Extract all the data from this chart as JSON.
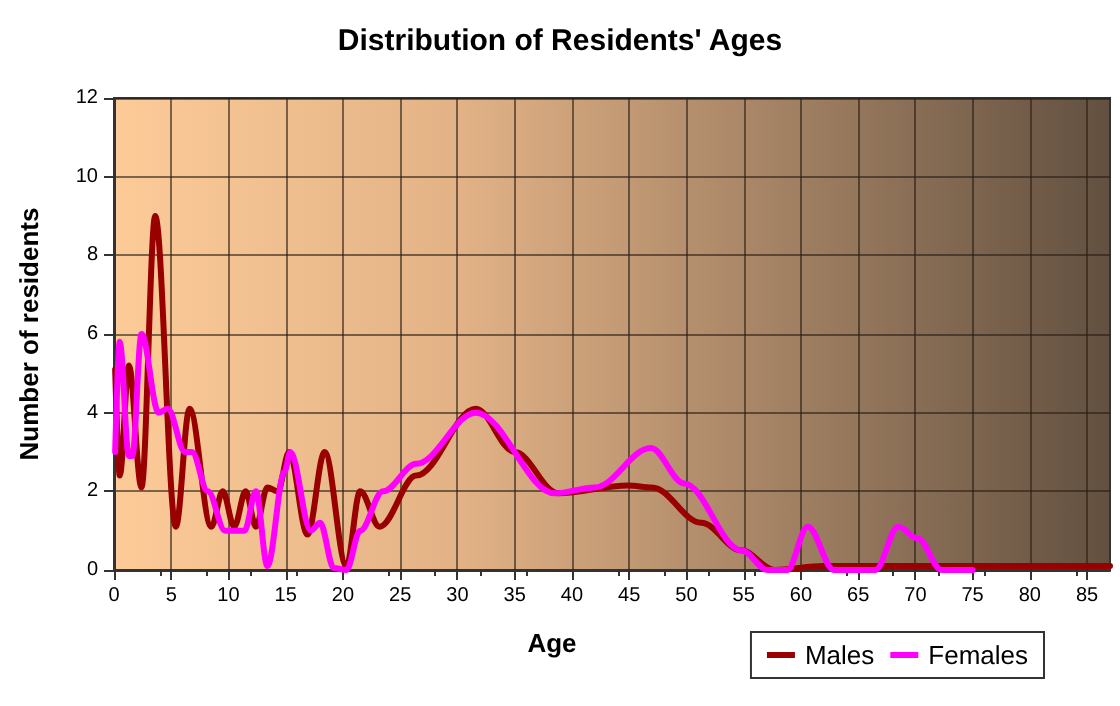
{
  "chart_data": {
    "type": "line",
    "title": "Distribution of Residents' Ages",
    "xlabel": "Age",
    "ylabel": "Number of residents",
    "xlim": [
      0,
      87
    ],
    "xticks": [
      0,
      5,
      10,
      15,
      20,
      25,
      30,
      35,
      40,
      45,
      50,
      55,
      60,
      65,
      70,
      75,
      80,
      85
    ],
    "ylim": [
      0,
      12
    ],
    "yticks": [
      0,
      2,
      4,
      6,
      8,
      10,
      12
    ],
    "grid": true,
    "legend": "bottom right",
    "marker": "none",
    "line_style": "solid",
    "series": [
      {
        "name": "Males",
        "color": "#990000",
        "x": [
          0.1,
          0.5,
          1.3,
          2.4,
          3.6,
          5.4,
          6.6,
          8.5,
          9.5,
          10.5,
          11.5,
          12.4,
          13.4,
          14.3,
          15.3,
          16.9,
          18.4,
          20.3,
          21.5,
          23.2,
          26.4,
          31.6,
          35,
          38.8,
          44.9,
          47,
          51.3,
          54.8,
          57.7,
          62,
          70,
          87
        ],
        "values": [
          5.1,
          2.4,
          5.2,
          2.1,
          9.0,
          1.1,
          4.1,
          1.1,
          2.0,
          1.1,
          2.0,
          1.1,
          2.1,
          2.0,
          3.0,
          0.9,
          3.0,
          0.1,
          2.0,
          1.1,
          2.4,
          4.1,
          3.0,
          1.95,
          2.15,
          2.1,
          1.2,
          0.5,
          0,
          0.1,
          0.1,
          0.1
        ]
      },
      {
        "name": "Females",
        "color": "#ff00ff",
        "x": [
          0.1,
          0.5,
          1.3,
          1.6,
          2.4,
          3.9,
          4.7,
          6.2,
          6.8,
          8.2,
          9.7,
          11.4,
          12.4,
          13.4,
          14.9,
          15.4,
          17.2,
          18.0,
          19.2,
          20.3,
          21.5,
          23.5,
          26.4,
          31.6,
          38.5,
          42,
          46.9,
          49.8,
          54.8,
          57.1,
          58.8,
          60.6,
          62.9,
          66.5,
          68.5,
          70.2,
          72.3,
          75
        ],
        "values": [
          3.0,
          5.8,
          2.9,
          2.9,
          6.0,
          4.0,
          4.1,
          3.0,
          3.0,
          2.0,
          1.0,
          1.0,
          2.0,
          0.1,
          2.5,
          3.0,
          1.0,
          1.2,
          0.05,
          0,
          1.0,
          2.0,
          2.7,
          4.0,
          1.95,
          2.1,
          3.1,
          2.2,
          0.5,
          0,
          0,
          1.1,
          0,
          0,
          1.1,
          0.8,
          0,
          0
        ]
      }
    ]
  }
}
